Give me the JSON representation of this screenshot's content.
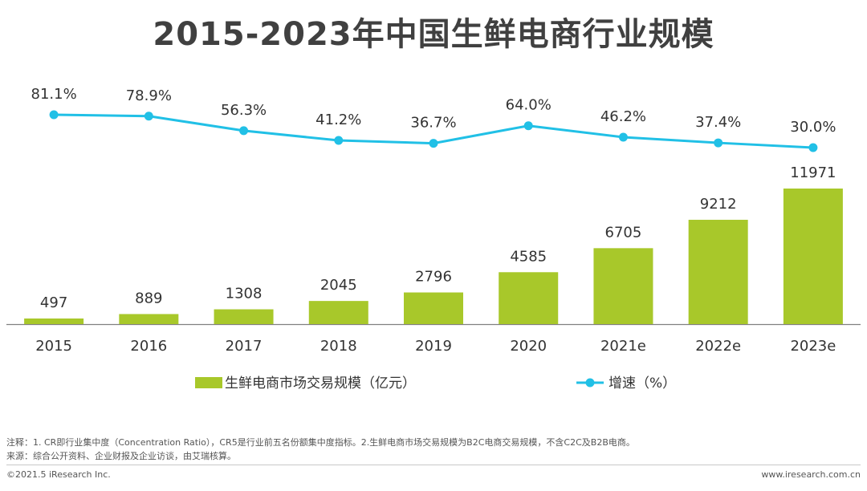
{
  "chart_data": {
    "type": "bar+line",
    "title": "2015-2023年中国生鲜电商行业规模",
    "categories": [
      "2015",
      "2016",
      "2017",
      "2018",
      "2019",
      "2020",
      "2021e",
      "2022e",
      "2023e"
    ],
    "series": [
      {
        "name": "生鲜电商市场交易规模（亿元）",
        "type": "bar",
        "values": [
          497,
          889,
          1308,
          2045,
          2796,
          4585,
          6705,
          9212,
          11971
        ],
        "labels": [
          "497",
          "889",
          "1308",
          "2045",
          "2796",
          "4585",
          "6705",
          "9212",
          "11971"
        ],
        "color": "#a8c82a"
      },
      {
        "name": "增速（%）",
        "type": "line",
        "values": [
          81.1,
          78.9,
          56.3,
          41.2,
          36.7,
          64.0,
          46.2,
          37.4,
          30.0
        ],
        "labels": [
          "81.1%",
          "78.9%",
          "56.3%",
          "41.2%",
          "36.7%",
          "64.0%",
          "46.2%",
          "37.4%",
          "30.0%"
        ],
        "color": "#21c0e6"
      }
    ],
    "bar_ylim": [
      0,
      14000
    ],
    "line_ylim": [
      0,
      100
    ],
    "legend_position": "bottom",
    "grid": false
  },
  "notes": {
    "note": "注释：1. CR即行业集中度（Concentration Ratio），CR5是行业前五名份额集中度指标。2.生鲜电商市场交易规模为B2C电商交易规模，不含C2C及B2B电商。",
    "source": "来源：综合公开资料、企业财报及企业访谈，由艾瑞核算。"
  },
  "footer": {
    "copyright": "©2021.5 iResearch Inc.",
    "website": "www.iresearch.com.cn"
  },
  "colors": {
    "bar": "#a8c82a",
    "line": "#21c0e6",
    "axis": "#808080",
    "text": "#333333"
  }
}
